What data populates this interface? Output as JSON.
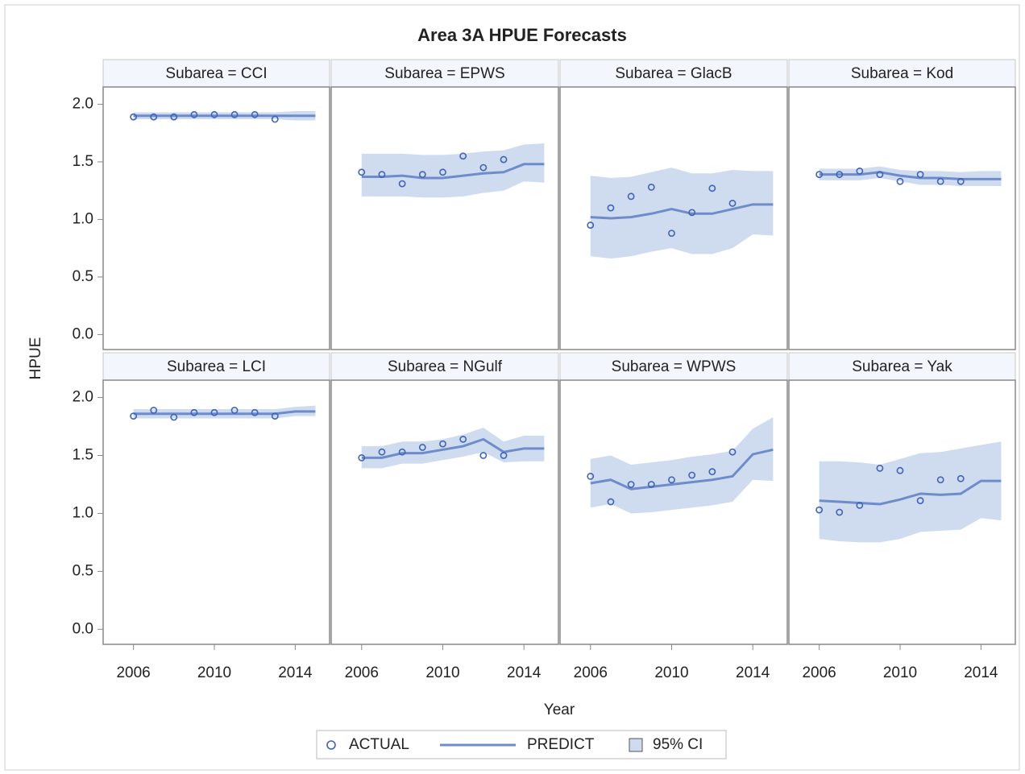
{
  "title": "Area 3A HPUE Forecasts",
  "x_label": "Year",
  "y_label": "HPUE",
  "xlim": [
    2004.5,
    2015.7
  ],
  "xticks": [
    2006,
    2010,
    2014
  ],
  "ylim": [
    -0.13,
    2.15
  ],
  "yticks": [
    {
      "value": 0,
      "label": "0.0"
    },
    {
      "value": 0.5,
      "label": "0.5"
    },
    {
      "value": 1,
      "label": "1.0"
    },
    {
      "value": 1.5,
      "label": "1.5"
    },
    {
      "value": 2,
      "label": "2.0"
    }
  ],
  "chart_data": [
    {
      "type": "line",
      "title": "Subarea = CCI",
      "x": [
        2006,
        2007,
        2008,
        2009,
        2010,
        2011,
        2012,
        2013,
        2014,
        2015
      ],
      "series": [
        {
          "name": "ACTUAL",
          "color": "#3f63b8",
          "values": [
            1.89,
            1.89,
            1.89,
            1.91,
            1.91,
            1.91,
            1.91,
            1.87,
            null,
            null
          ]
        },
        {
          "name": "PREDICT",
          "color": "#6e8ccc",
          "values": [
            1.9,
            1.9,
            1.9,
            1.9,
            1.9,
            1.9,
            1.9,
            1.9,
            1.9,
            1.9
          ]
        },
        {
          "name": "95% CI",
          "color": "#cfdbef",
          "lower": [
            1.87,
            1.87,
            1.87,
            1.87,
            1.87,
            1.87,
            1.87,
            1.87,
            1.86,
            1.86
          ],
          "upper": [
            1.93,
            1.93,
            1.93,
            1.93,
            1.93,
            1.93,
            1.93,
            1.93,
            1.94,
            1.94
          ]
        }
      ]
    },
    {
      "type": "line",
      "title": "Subarea = EPWS",
      "x": [
        2006,
        2007,
        2008,
        2009,
        2010,
        2011,
        2012,
        2013,
        2014,
        2015
      ],
      "series": [
        {
          "name": "ACTUAL",
          "color": "#3f63b8",
          "values": [
            1.41,
            1.39,
            1.31,
            1.39,
            1.41,
            1.55,
            1.45,
            1.52,
            null,
            null
          ]
        },
        {
          "name": "PREDICT",
          "color": "#6e8ccc",
          "values": [
            1.37,
            1.37,
            1.38,
            1.36,
            1.36,
            1.38,
            1.4,
            1.41,
            1.48,
            1.48
          ]
        },
        {
          "name": "95% CI",
          "color": "#cfdbef",
          "lower": [
            1.2,
            1.2,
            1.2,
            1.19,
            1.19,
            1.2,
            1.23,
            1.25,
            1.33,
            1.32
          ],
          "upper": [
            1.57,
            1.57,
            1.57,
            1.56,
            1.56,
            1.57,
            1.59,
            1.6,
            1.65,
            1.66
          ]
        }
      ]
    },
    {
      "type": "line",
      "title": "Subarea = GlacB",
      "x": [
        2006,
        2007,
        2008,
        2009,
        2010,
        2011,
        2012,
        2013,
        2014,
        2015
      ],
      "series": [
        {
          "name": "ACTUAL",
          "color": "#3f63b8",
          "values": [
            0.95,
            1.1,
            1.2,
            1.28,
            0.88,
            1.06,
            1.27,
            1.14,
            null,
            null
          ]
        },
        {
          "name": "PREDICT",
          "color": "#6e8ccc",
          "values": [
            1.02,
            1.01,
            1.02,
            1.05,
            1.09,
            1.05,
            1.05,
            1.09,
            1.13,
            1.13
          ]
        },
        {
          "name": "95% CI",
          "color": "#cfdbef",
          "lower": [
            0.68,
            0.66,
            0.68,
            0.72,
            0.75,
            0.7,
            0.7,
            0.75,
            0.87,
            0.86
          ],
          "upper": [
            1.38,
            1.36,
            1.37,
            1.41,
            1.45,
            1.4,
            1.4,
            1.43,
            1.42,
            1.42
          ]
        }
      ]
    },
    {
      "type": "line",
      "title": "Subarea = Kod",
      "x": [
        2006,
        2007,
        2008,
        2009,
        2010,
        2011,
        2012,
        2013,
        2014,
        2015
      ],
      "series": [
        {
          "name": "ACTUAL",
          "color": "#3f63b8",
          "values": [
            1.39,
            1.39,
            1.42,
            1.39,
            1.33,
            1.39,
            1.33,
            1.33,
            null,
            null
          ]
        },
        {
          "name": "PREDICT",
          "color": "#6e8ccc",
          "values": [
            1.39,
            1.39,
            1.39,
            1.41,
            1.38,
            1.36,
            1.36,
            1.35,
            1.35,
            1.35
          ]
        },
        {
          "name": "95% CI",
          "color": "#cfdbef",
          "lower": [
            1.34,
            1.34,
            1.34,
            1.36,
            1.33,
            1.3,
            1.3,
            1.29,
            1.29,
            1.29
          ],
          "upper": [
            1.44,
            1.44,
            1.44,
            1.46,
            1.43,
            1.42,
            1.42,
            1.41,
            1.42,
            1.42
          ]
        }
      ]
    },
    {
      "type": "line",
      "title": "Subarea = LCI",
      "x": [
        2006,
        2007,
        2008,
        2009,
        2010,
        2011,
        2012,
        2013,
        2014,
        2015
      ],
      "series": [
        {
          "name": "ACTUAL",
          "color": "#3f63b8",
          "values": [
            1.84,
            1.89,
            1.83,
            1.87,
            1.87,
            1.89,
            1.87,
            1.84,
            null,
            null
          ]
        },
        {
          "name": "PREDICT",
          "color": "#6e8ccc",
          "values": [
            1.86,
            1.86,
            1.86,
            1.86,
            1.86,
            1.86,
            1.86,
            1.86,
            1.88,
            1.88
          ]
        },
        {
          "name": "95% CI",
          "color": "#cfdbef",
          "lower": [
            1.82,
            1.82,
            1.82,
            1.82,
            1.82,
            1.82,
            1.82,
            1.82,
            1.84,
            1.84
          ],
          "upper": [
            1.9,
            1.9,
            1.9,
            1.9,
            1.9,
            1.9,
            1.9,
            1.9,
            1.92,
            1.93
          ]
        }
      ]
    },
    {
      "type": "line",
      "title": "Subarea = NGulf",
      "x": [
        2006,
        2007,
        2008,
        2009,
        2010,
        2011,
        2012,
        2013,
        2014,
        2015
      ],
      "series": [
        {
          "name": "ACTUAL",
          "color": "#3f63b8",
          "values": [
            1.48,
            1.53,
            1.53,
            1.57,
            1.6,
            1.64,
            1.5,
            1.5,
            null,
            null
          ]
        },
        {
          "name": "PREDICT",
          "color": "#6e8ccc",
          "values": [
            1.48,
            1.48,
            1.52,
            1.52,
            1.55,
            1.58,
            1.64,
            1.53,
            1.56,
            1.56
          ]
        },
        {
          "name": "95% CI",
          "color": "#cfdbef",
          "lower": [
            1.39,
            1.39,
            1.43,
            1.43,
            1.46,
            1.49,
            1.53,
            1.44,
            1.45,
            1.45
          ],
          "upper": [
            1.58,
            1.58,
            1.62,
            1.62,
            1.64,
            1.68,
            1.74,
            1.62,
            1.67,
            1.67
          ]
        }
      ]
    },
    {
      "type": "line",
      "title": "Subarea = WPWS",
      "x": [
        2006,
        2007,
        2008,
        2009,
        2010,
        2011,
        2012,
        2013,
        2014,
        2015
      ],
      "series": [
        {
          "name": "ACTUAL",
          "color": "#3f63b8",
          "values": [
            1.32,
            1.1,
            1.25,
            1.25,
            1.29,
            1.33,
            1.36,
            1.53,
            null,
            null
          ]
        },
        {
          "name": "PREDICT",
          "color": "#6e8ccc",
          "values": [
            1.26,
            1.29,
            1.21,
            1.23,
            1.25,
            1.27,
            1.29,
            1.32,
            1.51,
            1.55
          ]
        },
        {
          "name": "95% CI",
          "color": "#cfdbef",
          "lower": [
            1.05,
            1.08,
            1.0,
            1.01,
            1.03,
            1.05,
            1.07,
            1.1,
            1.29,
            1.28
          ],
          "upper": [
            1.47,
            1.5,
            1.42,
            1.44,
            1.46,
            1.49,
            1.51,
            1.54,
            1.73,
            1.83
          ]
        }
      ]
    },
    {
      "type": "line",
      "title": "Subarea = Yak",
      "x": [
        2006,
        2007,
        2008,
        2009,
        2010,
        2011,
        2012,
        2013,
        2014,
        2015
      ],
      "series": [
        {
          "name": "ACTUAL",
          "color": "#3f63b8",
          "values": [
            1.03,
            1.01,
            1.07,
            1.39,
            1.37,
            1.11,
            1.29,
            1.3,
            null,
            null
          ]
        },
        {
          "name": "PREDICT",
          "color": "#6e8ccc",
          "values": [
            1.11,
            1.1,
            1.09,
            1.08,
            1.12,
            1.17,
            1.16,
            1.17,
            1.28,
            1.28
          ]
        },
        {
          "name": "95% CI",
          "color": "#cfdbef",
          "lower": [
            0.78,
            0.76,
            0.75,
            0.75,
            0.78,
            0.84,
            0.85,
            0.86,
            0.96,
            0.94
          ],
          "upper": [
            1.45,
            1.45,
            1.44,
            1.42,
            1.47,
            1.52,
            1.53,
            1.56,
            1.59,
            1.62
          ]
        }
      ]
    }
  ]
}
